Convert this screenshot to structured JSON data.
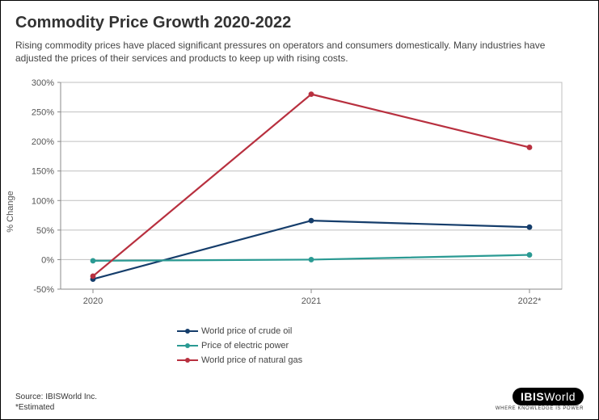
{
  "header": {
    "title": "Commodity Price Growth 2020-2022",
    "subtitle": "Rising commodity prices have placed significant pressures on operators and consumers domestically. Many industries have adjusted the prices of their services and products to keep up with rising costs."
  },
  "chart": {
    "type": "line",
    "ylabel": "% Change",
    "x_categories": [
      "2020",
      "2021",
      "2022*"
    ],
    "ylim": [
      -50,
      300
    ],
    "ytick_step": 50,
    "ytick_suffix": "%",
    "background_color": "#ffffff",
    "plot_bg_color": "#ffffff",
    "grid_color": "#bfbfbf",
    "axis_color": "#888888",
    "tick_font_size": 11,
    "line_width": 2.2,
    "marker_radius": 3.4,
    "series": [
      {
        "name": "World price of crude oil",
        "color": "#153d6b",
        "values": [
          -33,
          66,
          55
        ]
      },
      {
        "name": "Price of electric power",
        "color": "#2a9a93",
        "values": [
          -2,
          0,
          8
        ]
      },
      {
        "name": "World price of natural gas",
        "color": "#b8303f",
        "values": [
          -28,
          280,
          190
        ]
      }
    ]
  },
  "footer": {
    "source": "Source: IBISWorld Inc.",
    "note": "*Estimated"
  },
  "brand": {
    "logo_text_bold": "IBIS",
    "logo_text_light": "World",
    "tagline": "WHERE KNOWLEDGE IS POWER"
  }
}
